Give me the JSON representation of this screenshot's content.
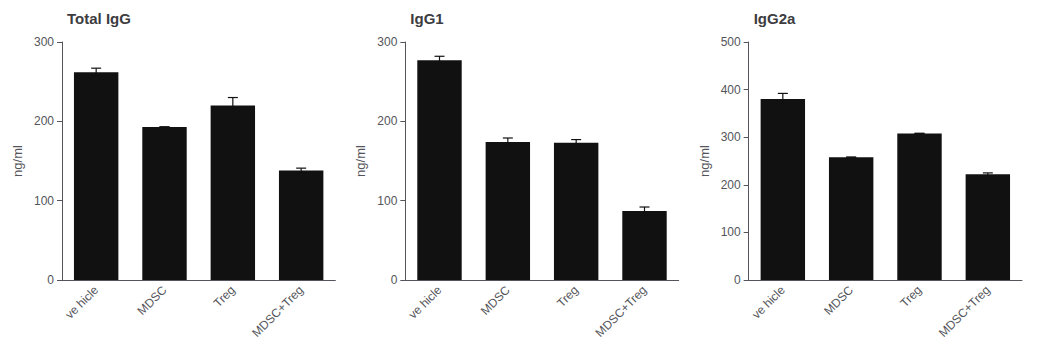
{
  "chart_data": [
    {
      "type": "bar",
      "title": "Total IgG",
      "ylabel": "ng/ml",
      "categories": [
        "ve hicle",
        "MDSC",
        "Treg",
        "MDSC+Treg"
      ],
      "values": [
        262,
        193,
        220,
        138
      ],
      "errors": [
        5,
        0,
        10,
        3
      ],
      "color": "#111111",
      "ylim": [
        0,
        300
      ],
      "yticks": [
        0,
        100,
        200,
        300
      ],
      "grid": false
    },
    {
      "type": "bar",
      "title": "IgG1",
      "ylabel": "ng/ml",
      "categories": [
        "ve hicle",
        "MDSC",
        "Treg",
        "MDSC+Treg"
      ],
      "values": [
        277,
        174,
        173,
        87
      ],
      "errors": [
        5,
        5,
        4,
        5
      ],
      "color": "#111111",
      "ylim": [
        0,
        300
      ],
      "yticks": [
        0,
        100,
        200,
        300
      ],
      "grid": false
    },
    {
      "type": "bar",
      "title": "IgG2a",
      "ylabel": "ng/ml",
      "categories": [
        "ve hicle",
        "MDSC",
        "Treg",
        "MDSC+Treg"
      ],
      "values": [
        380,
        258,
        308,
        222
      ],
      "errors": [
        12,
        0,
        0,
        3
      ],
      "color": "#111111",
      "ylim": [
        0,
        500
      ],
      "yticks": [
        0,
        100,
        200,
        300,
        400,
        500
      ],
      "grid": false
    }
  ]
}
